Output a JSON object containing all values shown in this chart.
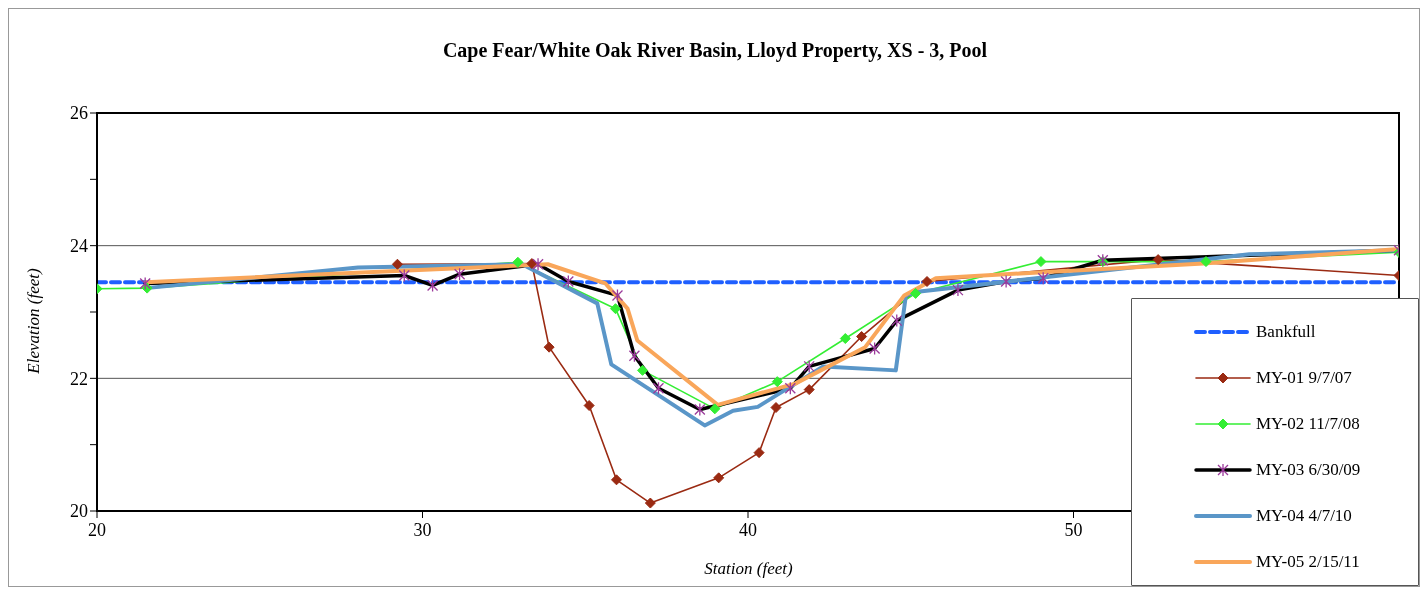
{
  "chart_data": {
    "type": "line",
    "title": "Cape Fear/White Oak River Basin, Lloyd Property, XS - 3, Pool",
    "xlabel": "Station (feet)",
    "ylabel": "Elevation (feet)",
    "xlim": [
      20,
      60
    ],
    "xticks": [
      20,
      30,
      40,
      50
    ],
    "ylim": [
      20,
      26
    ],
    "yticks": [
      20,
      {
        "value": 21,
        "label": null
      },
      22,
      {
        "value": 23,
        "label": null
      },
      24,
      {
        "value": 25,
        "label": null
      },
      26
    ],
    "grid": "y",
    "legend": "bottom right",
    "series": [
      {
        "name": "Bankfull",
        "color": "#1f5fff",
        "line_style": "dashed",
        "marker": "none",
        "x": [
          20,
          60
        ],
        "values": [
          23.45,
          23.45
        ]
      },
      {
        "name": "MY-01 9/7/07",
        "color": "#9a2a12",
        "marker": "diamond",
        "x": [
          29.23,
          33.36,
          33.89,
          35.12,
          35.96,
          37.0,
          39.1,
          40.34,
          40.86,
          41.88,
          43.49,
          45.5,
          52.6,
          60
        ],
        "values": [
          23.72,
          23.73,
          22.47,
          21.59,
          20.47,
          20.12,
          20.5,
          20.88,
          21.56,
          21.83,
          22.63,
          23.46,
          23.79,
          23.55
        ]
      },
      {
        "name": "MY-02 11/7/08",
        "color": "#33ee33",
        "marker": "diamond",
        "x": [
          20,
          21.54,
          32.93,
          35.93,
          36.76,
          38.98,
          40.9,
          42.99,
          45.15,
          49.0,
          50.9,
          54.07,
          60
        ],
        "values": [
          23.35,
          23.36,
          23.75,
          23.05,
          22.12,
          21.54,
          21.95,
          22.6,
          23.28,
          23.76,
          23.76,
          23.76,
          23.9
        ]
      },
      {
        "name": "MY-03 6/30/09",
        "color": "#000000",
        "marker": "cross",
        "x": [
          21.48,
          29.44,
          30.31,
          31.14,
          33.55,
          34.48,
          35.99,
          36.51,
          37.25,
          38.52,
          41.3,
          41.88,
          43.89,
          44.57,
          46.45,
          47.93,
          49.07,
          50.9,
          60
        ],
        "values": [
          23.43,
          23.55,
          23.4,
          23.57,
          23.72,
          23.46,
          23.25,
          22.34,
          21.85,
          21.53,
          21.85,
          22.18,
          22.45,
          22.87,
          23.33,
          23.46,
          23.51,
          23.78,
          23.93
        ]
      },
      {
        "name": "MY-04 4/7/10",
        "color": "#5a96c8",
        "marker": "none",
        "x": [
          21.5,
          28.02,
          33.06,
          35.37,
          35.8,
          38.67,
          39.54,
          40.3,
          42.31,
          44.54,
          44.85,
          45.28,
          55.4,
          60
        ],
        "values": [
          23.36,
          23.67,
          23.72,
          23.13,
          22.21,
          21.29,
          21.51,
          21.57,
          22.18,
          22.12,
          23.25,
          23.31,
          23.87,
          23.93
        ]
      },
      {
        "name": "MY-05 2/15/11",
        "color": "#f9a65a",
        "marker": "none",
        "x": [
          21.5,
          33.85,
          35.62,
          36.3,
          36.6,
          39.07,
          41.45,
          43.6,
          44.8,
          45.77,
          49.07,
          54.0,
          60
        ],
        "values": [
          23.45,
          23.72,
          23.43,
          23.05,
          22.57,
          21.6,
          21.92,
          22.47,
          23.25,
          23.51,
          23.6,
          23.73,
          23.95
        ]
      }
    ]
  }
}
